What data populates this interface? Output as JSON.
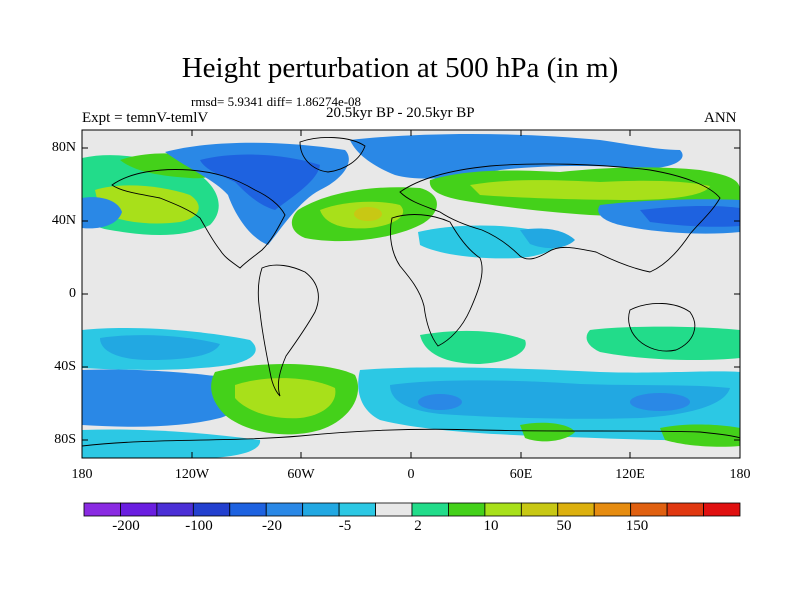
{
  "title": "Height perturbation at 500 hPa (in m)",
  "stats": "rmsd= 5.9341 diff= 1.86274e-08",
  "experiment": "Expt = temnV-temlV",
  "period": "20.5kyr BP - 20.5kyr BP",
  "season": "ANN",
  "lat_ticks": [
    "80N",
    "40N",
    "0",
    "40S",
    "80S"
  ],
  "lon_ticks": [
    "180",
    "120W",
    "60W",
    "0",
    "60E",
    "120E",
    "180"
  ],
  "colorbar": {
    "colors": [
      "#8a2be2",
      "#6a1ee0",
      "#4b2fd6",
      "#2340cf",
      "#1e62e0",
      "#2a88e6",
      "#22a8e2",
      "#2cc8e4",
      "#e8e8e8",
      "#22dc8a",
      "#44d11a",
      "#a8e01a",
      "#c8c814",
      "#dcb00e",
      "#e68c10",
      "#e06010",
      "#e03810",
      "#e01010"
    ],
    "labels": [
      "-200",
      "-100",
      "-20",
      "-5",
      "2",
      "10",
      "50",
      "150"
    ]
  },
  "palette": {
    "ocean_bg": "#e8e8e8",
    "coast": "#000000",
    "strong_neg": "#1e62e0",
    "mid_neg": "#2a88e6",
    "weak_neg": "#22a8e2",
    "faint_neg": "#2cc8e4",
    "weak_pos": "#22dc8a",
    "mid_pos": "#44d11a",
    "strong_pos": "#a8e01a",
    "peak_pos": "#c8c814"
  }
}
